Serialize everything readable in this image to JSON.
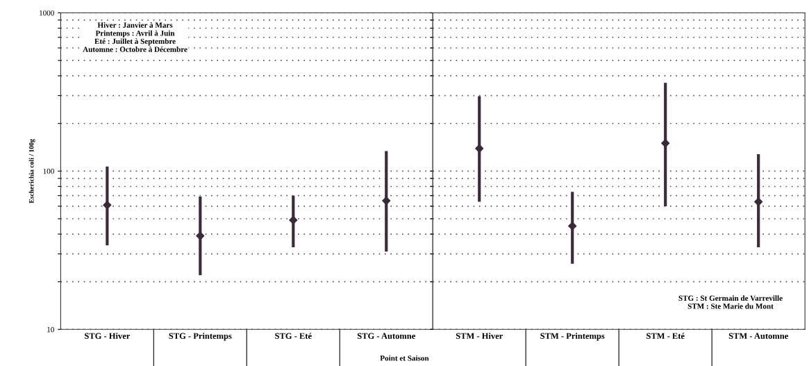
{
  "chart_data": [
    {
      "type": "scatter",
      "ylabel": "Escherichia coli / 100g",
      "xlabel": "Point et Saison",
      "categories": [
        "STG - Hiver",
        "STG - Printemps",
        "STG - Eté",
        "STG - Automne"
      ],
      "series": [
        {
          "color": "#3a2a3a",
          "values": [
            61,
            39,
            49,
            65
          ],
          "errors": [
            [
              34,
              107
            ],
            [
              22,
              69
            ],
            [
              33,
              70
            ],
            [
              31,
              134
            ]
          ]
        }
      ],
      "marker": "diamond",
      "log": "y",
      "grid": "y",
      "ylim": [
        10,
        1000
      ],
      "yticks": [
        10,
        {
          "value": 20,
          "label": null
        },
        {
          "value": 30,
          "label": null
        },
        {
          "value": 40,
          "label": null
        },
        {
          "value": 50,
          "label": null
        },
        {
          "value": 60,
          "label": null
        },
        {
          "value": 70,
          "label": null
        },
        {
          "value": 80,
          "label": null
        },
        {
          "value": 90,
          "label": null
        },
        100,
        {
          "value": 200,
          "label": null
        },
        {
          "value": 300,
          "label": null
        },
        {
          "value": 400,
          "label": null
        },
        {
          "value": 500,
          "label": null
        },
        {
          "value": 600,
          "label": null
        },
        {
          "value": 700,
          "label": null
        },
        {
          "value": 800,
          "label": null
        },
        {
          "value": 900,
          "label": null
        },
        1000
      ],
      "annotations": [
        "Hiver : Janvier à Mars\nPrintemps : Avril à Juin\nEté : Juillet à Septembre\nAutomne : Octobre à Décembre"
      ]
    },
    {
      "type": "scatter",
      "categories": [
        "STM - Hiver",
        "STM - Printemps",
        "STM - Eté",
        "STM - Automne"
      ],
      "series": [
        {
          "color": "#3a2a3a",
          "values": [
            139,
            45,
            150,
            64
          ],
          "errors": [
            [
              64,
              297
            ],
            [
              26,
              74
            ],
            [
              60,
              361
            ],
            [
              33,
              128
            ]
          ]
        }
      ],
      "marker": "diamond",
      "log": "y",
      "grid": "y",
      "ylim": [
        10,
        1000
      ],
      "tick_labels": "x",
      "yticks": [
        10,
        {
          "value": 20,
          "label": null
        },
        {
          "value": 30,
          "label": null
        },
        {
          "value": 40,
          "label": null
        },
        {
          "value": 50,
          "label": null
        },
        {
          "value": 60,
          "label": null
        },
        {
          "value": 70,
          "label": null
        },
        {
          "value": 80,
          "label": null
        },
        {
          "value": 90,
          "label": null
        },
        100,
        {
          "value": 200,
          "label": null
        },
        {
          "value": 300,
          "label": null
        },
        {
          "value": 400,
          "label": null
        },
        {
          "value": 500,
          "label": null
        },
        {
          "value": 600,
          "label": null
        },
        {
          "value": 700,
          "label": null
        },
        {
          "value": 800,
          "label": null
        },
        {
          "value": 900,
          "label": null
        },
        1000
      ],
      "annotations": [
        "STG : St Germain de Varreville\nSTM : Ste Marie du Mont"
      ]
    }
  ]
}
